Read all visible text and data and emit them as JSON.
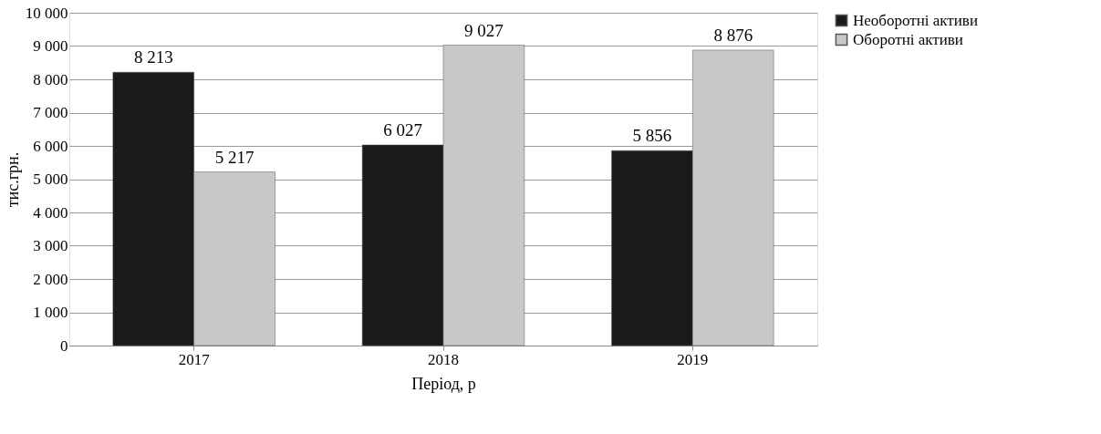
{
  "chart_data": {
    "type": "bar",
    "xlabel": "Період, р",
    "ylabel": "тис.грн.",
    "categories": [
      "2017",
      "2018",
      "2019"
    ],
    "series": [
      {
        "name": "Необоротні активи",
        "color": "#1a1a1a",
        "values": [
          8213,
          6027,
          5856
        ],
        "value_labels": [
          "8 213",
          "6 027",
          "5 856"
        ]
      },
      {
        "name": "Оборотні активи",
        "color": "#c8c8c8",
        "values": [
          5217,
          9027,
          8876
        ],
        "value_labels": [
          "5 217",
          "9 027",
          "8 876"
        ]
      }
    ],
    "ylim": [
      0,
      10000
    ],
    "yticks": [
      0,
      {
        "value": 1000,
        "label": "1 000"
      },
      {
        "value": 2000,
        "label": "2 000"
      },
      {
        "value": 3000,
        "label": "3 000"
      },
      {
        "value": 4000,
        "label": "4 000"
      },
      {
        "value": 5000,
        "label": "5 000"
      },
      {
        "value": 6000,
        "label": "6 000"
      },
      {
        "value": 7000,
        "label": "7 000"
      },
      {
        "value": 8000,
        "label": "8 000"
      },
      {
        "value": 9000,
        "label": "9 000"
      },
      {
        "value": 10000,
        "label": "10 000"
      }
    ],
    "grid": "y",
    "legend": "right"
  }
}
